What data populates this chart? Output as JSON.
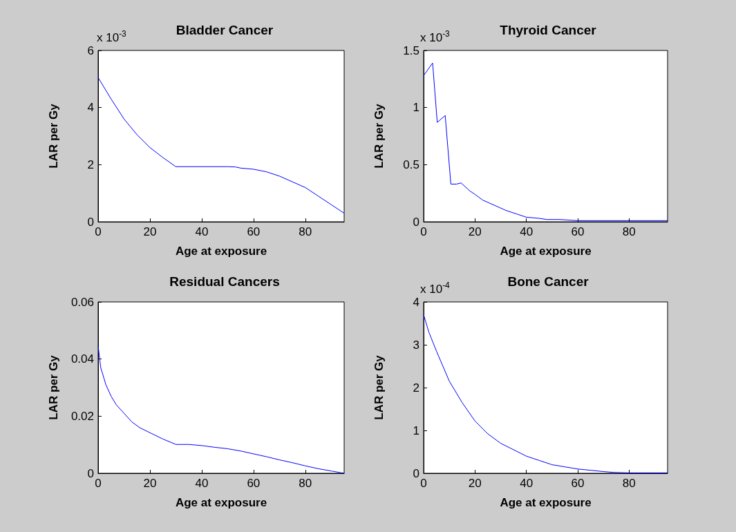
{
  "chart_data": [
    {
      "type": "line",
      "title": "Bladder Cancer",
      "xlabel": "Age at exposure",
      "ylabel": "LAR per Gy",
      "annotations": [
        "x 10$^{-3}$"
      ],
      "xlim": [
        0,
        95
      ],
      "xticks": [
        0,
        20,
        40,
        60,
        80
      ],
      "ylim": [
        0,
        6
      ],
      "yticks": [
        0,
        2,
        4,
        6
      ],
      "x": [
        0,
        5,
        10,
        15,
        20,
        25,
        30,
        40,
        50,
        53,
        55,
        60,
        65,
        70,
        75,
        80,
        85,
        90,
        95
      ],
      "series": [
        {
          "color": "#0000ff",
          "values": [
            5.05,
            4.3,
            3.6,
            3.05,
            2.6,
            2.25,
            1.93,
            1.93,
            1.93,
            1.92,
            1.88,
            1.84,
            1.75,
            1.6,
            1.4,
            1.2,
            0.9,
            0.6,
            0.3
          ]
        }
      ]
    },
    {
      "type": "line",
      "title": "Thyroid Cancer",
      "xlabel": "Age at exposure",
      "ylabel": "LAR per Gy",
      "annotations": [
        "x 10$^{-3}$"
      ],
      "xlim": [
        0,
        95
      ],
      "xticks": [
        0,
        20,
        40,
        60,
        80
      ],
      "ylim": [
        0,
        1.5
      ],
      "yticks": [
        0,
        0.5,
        1,
        1.5
      ],
      "x": [
        0,
        3.5,
        5.3,
        8.4,
        10.6,
        12.8,
        14.6,
        18,
        20,
        23,
        28,
        32,
        36,
        40,
        45,
        48,
        53,
        60,
        95
      ],
      "series": [
        {
          "color": "#0000ff",
          "values": [
            1.28,
            1.39,
            0.87,
            0.93,
            0.33,
            0.33,
            0.34,
            0.27,
            0.24,
            0.19,
            0.14,
            0.1,
            0.07,
            0.04,
            0.03,
            0.02,
            0.02,
            0.01,
            0.01
          ]
        }
      ]
    },
    {
      "type": "line",
      "title": "Residual Cancers",
      "xlabel": "Age at exposure",
      "ylabel": "LAR per Gy",
      "xlim": [
        0,
        95
      ],
      "xticks": [
        0,
        20,
        40,
        60,
        80
      ],
      "ylim": [
        0,
        0.06
      ],
      "yticks": [
        0,
        0.02,
        0.04,
        0.06
      ],
      "x": [
        0,
        1,
        3,
        5,
        7,
        10,
        13,
        16,
        20,
        25,
        30,
        35,
        40,
        45,
        50,
        55,
        60,
        65,
        70,
        75,
        80,
        85,
        90,
        95
      ],
      "series": [
        {
          "color": "#0000ff",
          "values": [
            0.0447,
            0.037,
            0.031,
            0.027,
            0.024,
            0.021,
            0.018,
            0.016,
            0.0142,
            0.012,
            0.0101,
            0.0101,
            0.0097,
            0.0091,
            0.0086,
            0.0078,
            0.0068,
            0.0058,
            0.0047,
            0.0037,
            0.0026,
            0.0016,
            0.0008,
            0
          ]
        }
      ]
    },
    {
      "type": "line",
      "title": "Bone Cancer",
      "xlabel": "Age at exposure",
      "ylabel": "LAR per Gy",
      "annotations": [
        "x 10$^{-4}$"
      ],
      "xlim": [
        0,
        95
      ],
      "xticks": [
        0,
        20,
        40,
        60,
        80
      ],
      "ylim": [
        0,
        4
      ],
      "yticks": [
        0,
        1,
        2,
        3,
        4
      ],
      "x": [
        0,
        2,
        5,
        10,
        15,
        20,
        25,
        30,
        35,
        40,
        45,
        50,
        55,
        60,
        65,
        70,
        74,
        80,
        95
      ],
      "series": [
        {
          "color": "#0000ff",
          "values": [
            3.7,
            3.3,
            2.85,
            2.15,
            1.65,
            1.22,
            0.92,
            0.7,
            0.55,
            0.4,
            0.3,
            0.2,
            0.15,
            0.1,
            0.07,
            0.04,
            0.02,
            0.01,
            0.01
          ]
        }
      ]
    }
  ]
}
